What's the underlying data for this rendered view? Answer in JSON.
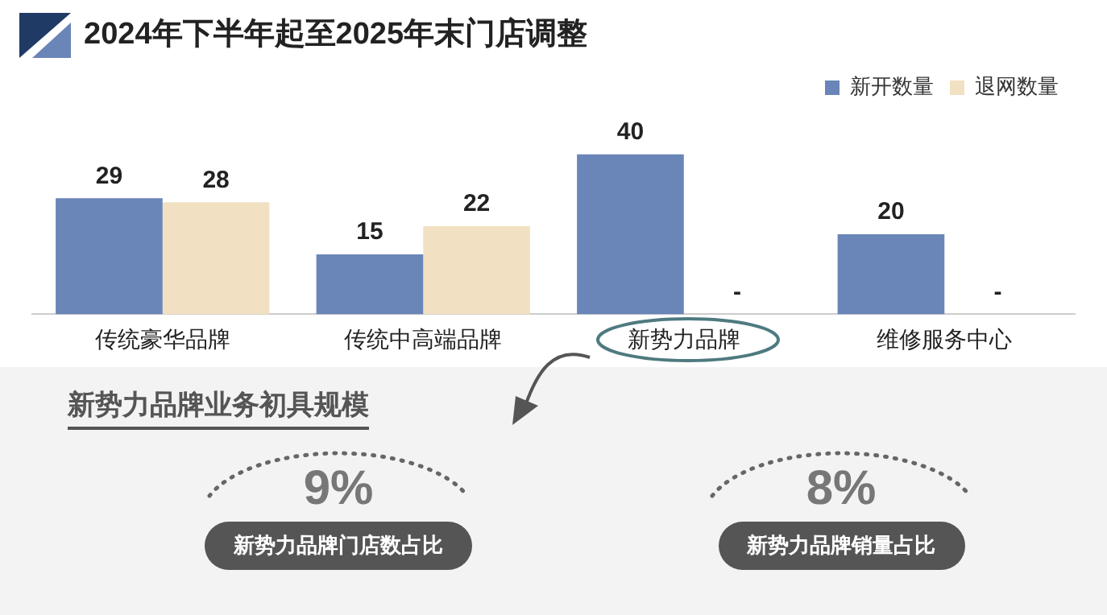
{
  "chart_data": [
    {
      "type": "bar",
      "title": "2024年下半年起至2025年末门店调整",
      "categories": [
        "传统豪华品牌",
        "传统中高端品牌",
        "新势力品牌",
        "维修服务中心"
      ],
      "series": [
        {
          "name": "新开数量",
          "color": "#6a85b8",
          "values": [
            29,
            15,
            40,
            20
          ],
          "value_labels": [
            "29",
            "15",
            "40",
            "20"
          ]
        },
        {
          "name": "退网数量",
          "color": "#f2e0c2",
          "values": [
            28,
            22,
            null,
            null
          ],
          "value_labels": [
            "28",
            "22",
            "-",
            "-"
          ]
        }
      ],
      "legend": "top right",
      "grid": false,
      "tick_labels": "x"
    },
    {
      "type": "other",
      "title": "新势力品牌业务初具规模",
      "annotations": [
        "9%",
        "新势力品牌门店数占比",
        "8%",
        "新势力品牌销量占比"
      ]
    }
  ]
}
